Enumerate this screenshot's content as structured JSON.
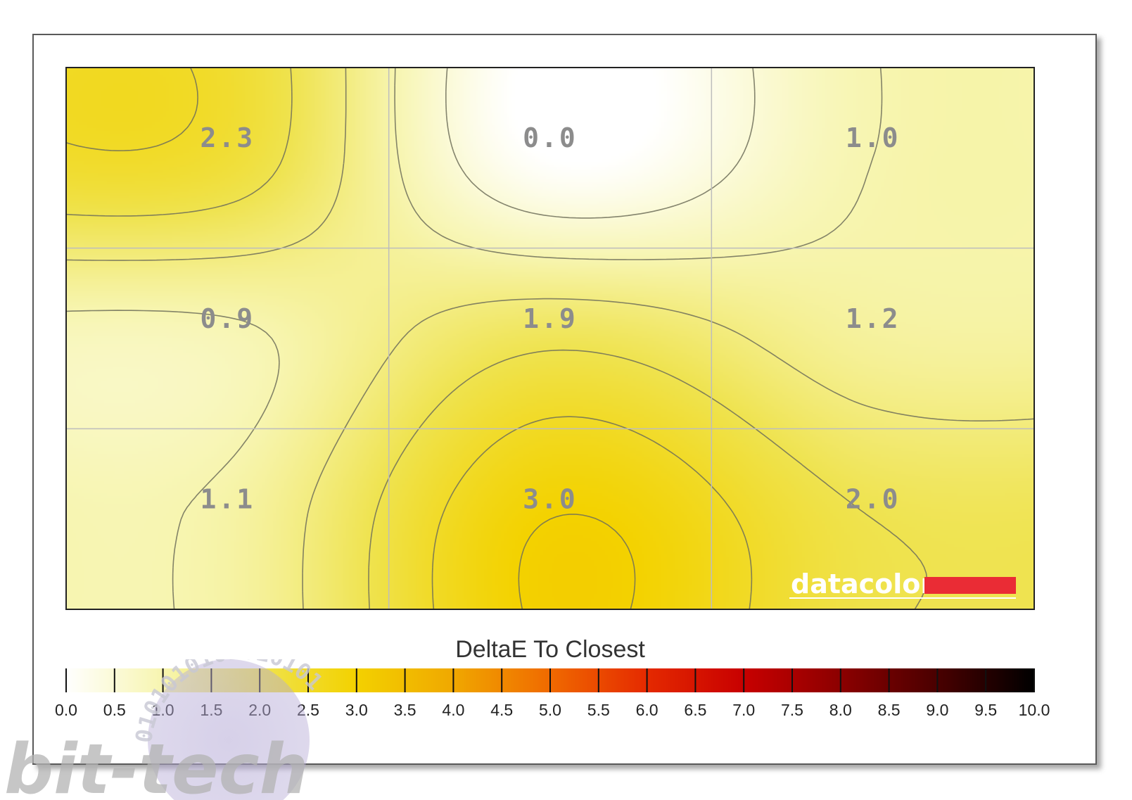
{
  "chart_data": {
    "type": "heatmap",
    "title": "",
    "grid": true,
    "rows": 3,
    "cols": 3,
    "values": [
      [
        2.3,
        0.0,
        1.0
      ],
      [
        0.9,
        1.9,
        1.2
      ],
      [
        1.1,
        3.0,
        2.0
      ]
    ],
    "labels": [
      [
        "2.3",
        "0.0",
        "1.0"
      ],
      [
        "0.9",
        "1.9",
        "1.2"
      ],
      [
        "1.1",
        "3.0",
        "2.0"
      ]
    ],
    "legend": {
      "title": "DeltaE To Closest",
      "min": 0.0,
      "max": 10.0,
      "step": 0.5,
      "tick_labels": [
        "0.0",
        "0.5",
        "1.0",
        "1.5",
        "2.0",
        "2.5",
        "3.0",
        "3.5",
        "4.0",
        "4.5",
        "5.0",
        "5.5",
        "6.0",
        "6.5",
        "7.0",
        "7.5",
        "8.0",
        "8.5",
        "9.0",
        "9.5",
        "10.0"
      ]
    },
    "colors": [
      "#ffffff",
      "#f7f5b0",
      "#efe34f",
      "#f3d200",
      "#f0a800",
      "#f06a00",
      "#e52a00",
      "#c80000",
      "#8c0000",
      "#4a0000",
      "#000000"
    ]
  },
  "brand": {
    "label": "datacolor",
    "accent": "#ea2c35"
  },
  "watermark": {
    "text": "bit-tech",
    "binary": "0101010101010101"
  }
}
